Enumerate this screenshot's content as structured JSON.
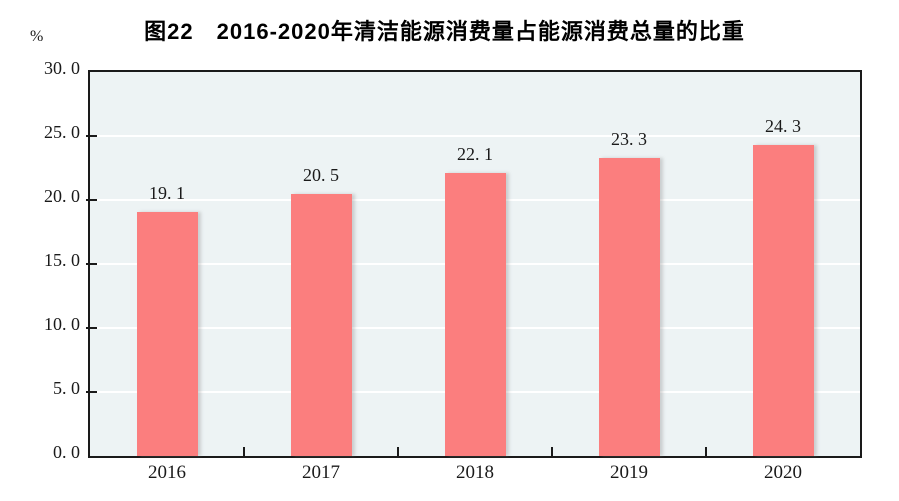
{
  "chart_data": {
    "type": "bar",
    "title": "图22　2016-2020年清洁能源消费量占能源消费总量的比重",
    "categories": [
      "2016",
      "2017",
      "2018",
      "2019",
      "2020"
    ],
    "values": [
      19.1,
      20.5,
      22.1,
      23.3,
      24.3
    ],
    "data_labels": [
      "19.1",
      "20.5",
      "22.1",
      "23.3",
      "24.3"
    ],
    "xlabel": "",
    "ylabel": "%",
    "ylim": [
      0,
      30
    ],
    "yticks": [
      0,
      5,
      10,
      15,
      20,
      25,
      30
    ],
    "ytick_labels": [
      "0.0",
      "5.0",
      "10.0",
      "15.0",
      "20.0",
      "25.0",
      "30.0"
    ],
    "grid": true,
    "legend_position": "none",
    "colors": {
      "bar": "#FB7E7E",
      "plot_background": "#EDF3F4",
      "gridline": "#FFFFFF",
      "axis": "#1A1A1A",
      "text": "#1A1A1A"
    }
  }
}
